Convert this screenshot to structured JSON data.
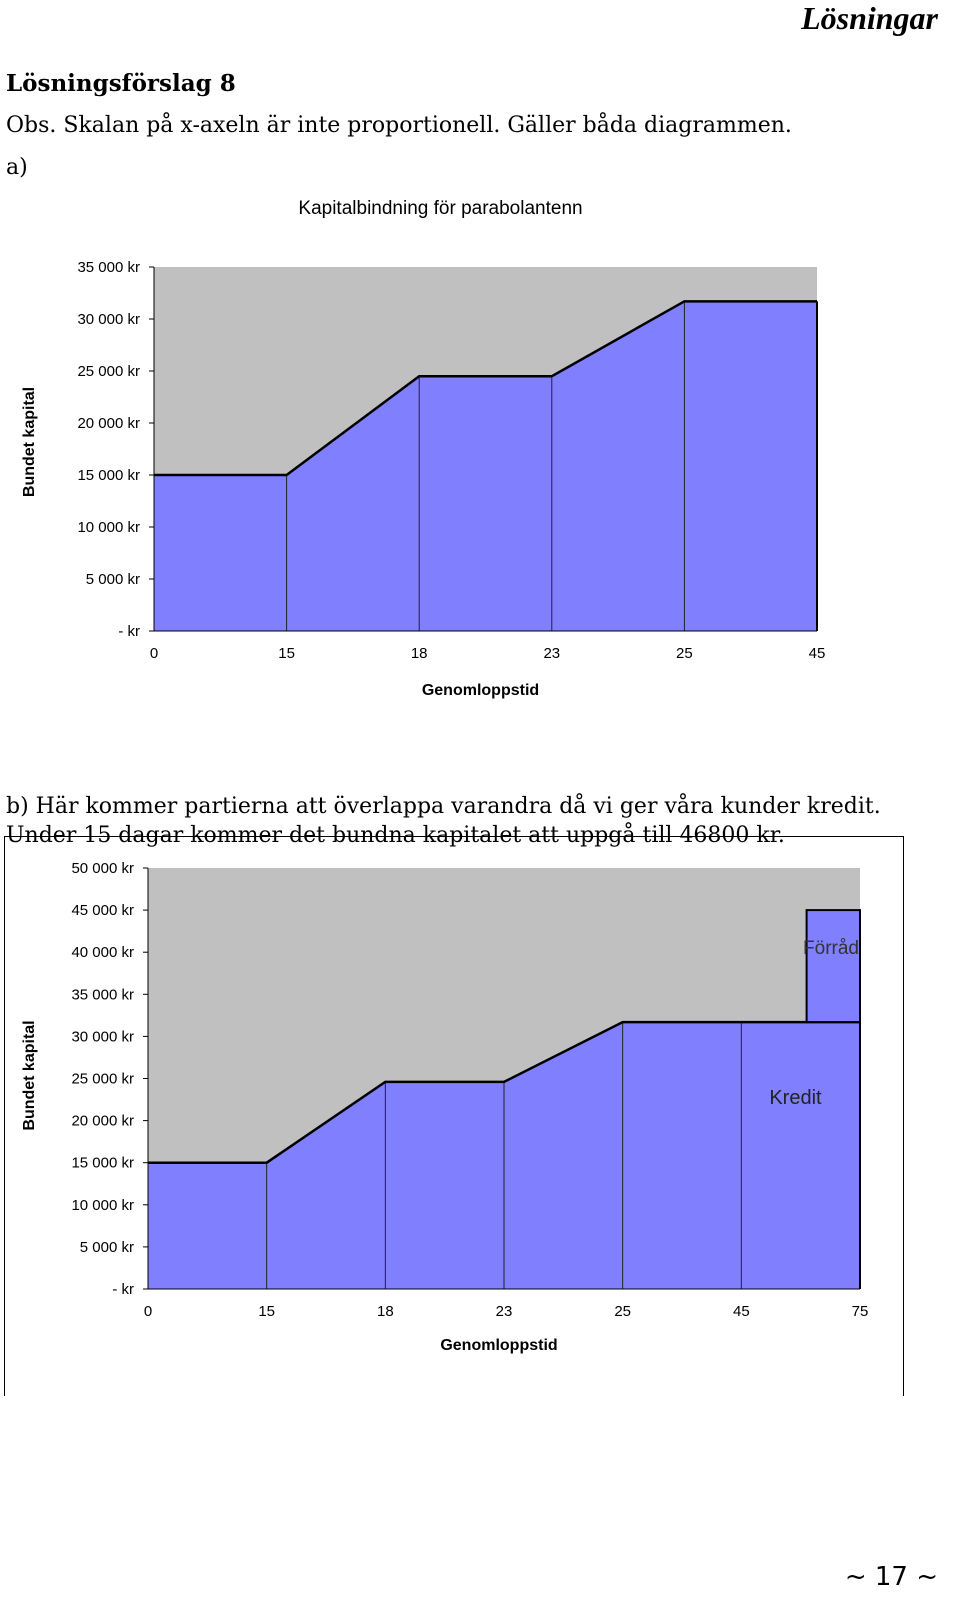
{
  "header": {
    "title": "Lösningar"
  },
  "solution_title": "Lösningsförslag 8",
  "note": "Obs. Skalan på x-axeln är inte proportionell. Gäller båda diagrammen.",
  "part_a_label": "a)",
  "part_b_line1": "b) Här kommer partierna att överlappa varandra då vi ger våra kunder kredit.",
  "part_b_line2": "Under 15 dagar kommer det bundna kapitalet att uppgå till 46800 kr.",
  "page_number": "~ 17 ~",
  "colors": {
    "plot_bg": "#c0c0c0",
    "area_fill": "#8080ff",
    "line": "#000000"
  },
  "chart_data": [
    {
      "type": "area",
      "title": "Kapitalbindning för parabolantenn",
      "xlabel": "Genomloppstid",
      "ylabel": "Bundet kapital",
      "categories": [
        "0",
        "15",
        "18",
        "23",
        "25",
        "45"
      ],
      "values": [
        15000,
        15000,
        24500,
        24500,
        31700,
        31700
      ],
      "ylim": [
        0,
        35000
      ],
      "yticks": [
        "35 000 kr",
        "30 000 kr",
        "25 000 kr",
        "20 000 kr",
        "15 000 kr",
        "10 000 kr",
        "5 000 kr",
        "-   kr"
      ],
      "grid": false
    },
    {
      "type": "area",
      "title": "",
      "xlabel": "Genomloppstid",
      "ylabel": "Bundet kapital",
      "categories": [
        "0",
        "15",
        "18",
        "23",
        "25",
        "45",
        "75"
      ],
      "values": [
        15000,
        15000,
        24600,
        24600,
        31700,
        31700,
        31700
      ],
      "overlay": {
        "label": "Förråd",
        "from": 31700,
        "to": 45000,
        "x_start": "45",
        "x_end": "75",
        "x_start_fraction": 0.55
      },
      "annotations": [
        {
          "label": "Kredit",
          "x": "45",
          "y": 22000
        }
      ],
      "ylim": [
        0,
        50000
      ],
      "yticks": [
        "50 000 kr",
        "45 000 kr",
        "40 000 kr",
        "35 000 kr",
        "30 000 kr",
        "25 000 kr",
        "20 000 kr",
        "15 000 kr",
        "10 000 kr",
        "5 000 kr",
        "-   kr"
      ],
      "grid": false
    }
  ]
}
